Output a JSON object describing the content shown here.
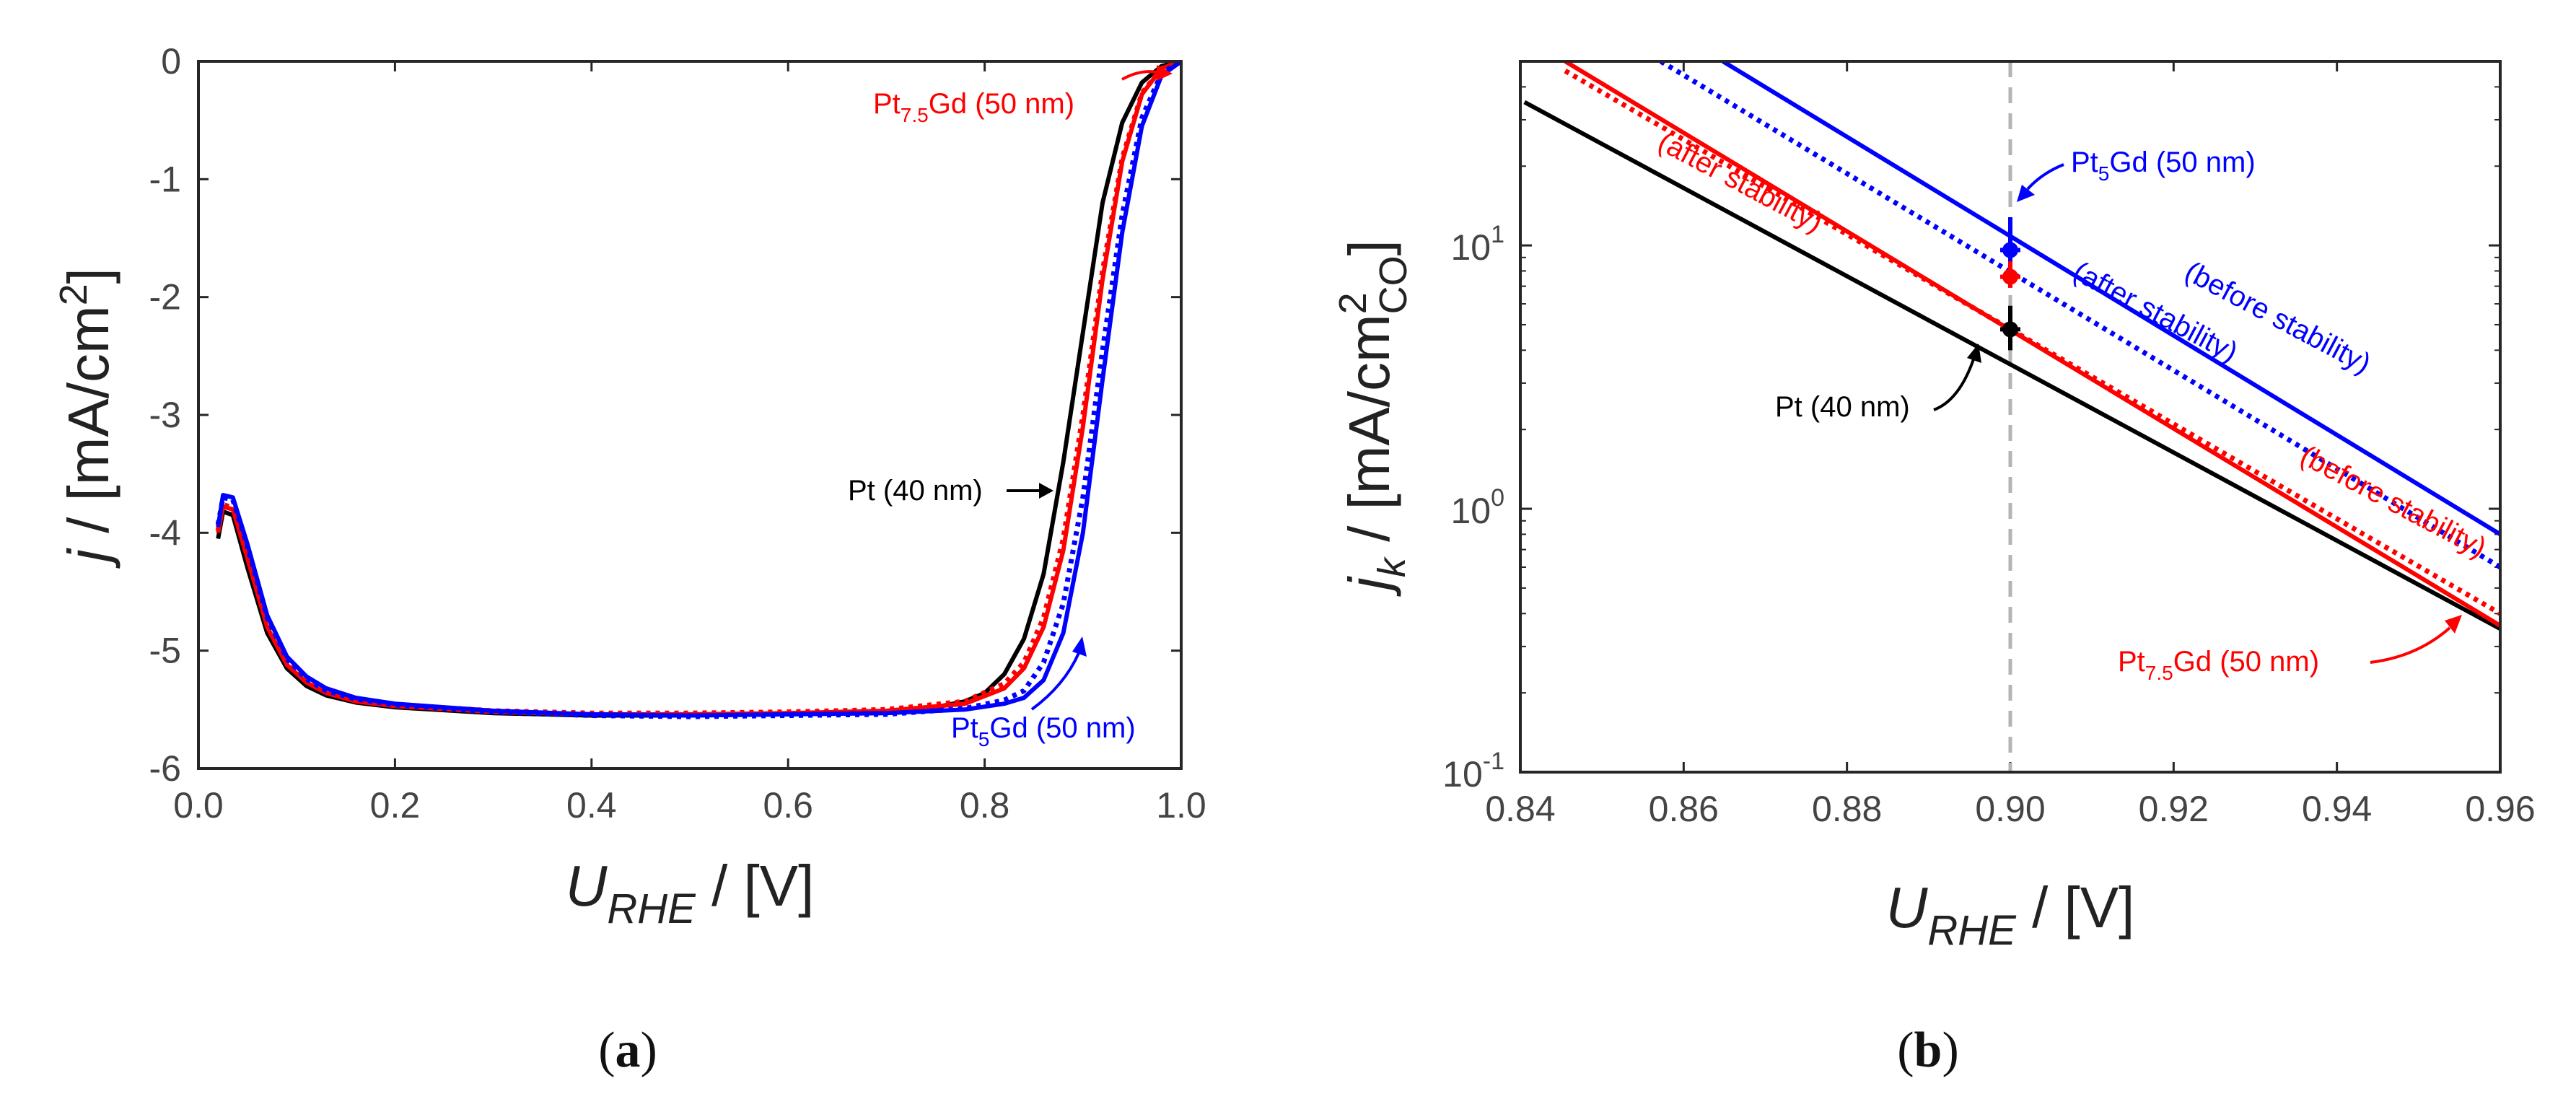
{
  "colors": {
    "pt": "#000000",
    "pt75gd": "#ff0000",
    "pt5gd": "#0000ff",
    "refline": "#b4b4b4"
  },
  "panels": {
    "a": {
      "label_open": "(",
      "label_letter": "a",
      "label_close": ")"
    },
    "b": {
      "label_open": "(",
      "label_letter": "b",
      "label_close": ")"
    }
  },
  "chart_data": [
    {
      "id": "a",
      "type": "line",
      "title": "",
      "xlabel": {
        "main": "U",
        "sub": "RHE",
        "unit": " / [V]"
      },
      "ylabel": {
        "main": "j",
        "rest": " / [mA/cm",
        "sup": "2",
        "close": "]"
      },
      "xlim": [
        0.0,
        1.0
      ],
      "ylim": [
        -6,
        0
      ],
      "xticks": [
        0.0,
        0.2,
        0.4,
        0.6,
        0.8,
        1.0
      ],
      "xtick_labels": [
        "0.0",
        "0.2",
        "0.4",
        "0.6",
        "0.8",
        "1.0"
      ],
      "yticks": [
        0,
        -1,
        -2,
        -3,
        -4,
        -5,
        -6
      ],
      "ytick_labels": [
        "0",
        "-1",
        "-2",
        "-3",
        "-4",
        "-5",
        "-6"
      ],
      "series": [
        {
          "name": "Pt (40 nm)",
          "color": "#000000",
          "style": "solid",
          "x": [
            0.02,
            0.025,
            0.035,
            0.05,
            0.07,
            0.09,
            0.11,
            0.13,
            0.16,
            0.2,
            0.3,
            0.4,
            0.5,
            0.6,
            0.7,
            0.75,
            0.78,
            0.8,
            0.82,
            0.84,
            0.86,
            0.88,
            0.9,
            0.92,
            0.94,
            0.96,
            0.98,
            1.0
          ],
          "y": [
            -4.05,
            -3.82,
            -3.85,
            -4.3,
            -4.85,
            -5.15,
            -5.3,
            -5.38,
            -5.44,
            -5.48,
            -5.53,
            -5.55,
            -5.55,
            -5.54,
            -5.52,
            -5.48,
            -5.43,
            -5.36,
            -5.2,
            -4.9,
            -4.35,
            -3.4,
            -2.3,
            -1.2,
            -0.52,
            -0.18,
            -0.04,
            0.0
          ]
        },
        {
          "name": "Pt(7.5)Gd (50 nm)",
          "color": "#ff0000",
          "style": "solid",
          "x": [
            0.02,
            0.025,
            0.035,
            0.05,
            0.07,
            0.09,
            0.11,
            0.13,
            0.16,
            0.2,
            0.3,
            0.4,
            0.5,
            0.6,
            0.7,
            0.78,
            0.82,
            0.84,
            0.86,
            0.88,
            0.9,
            0.92,
            0.94,
            0.96,
            0.98,
            1.0
          ],
          "y": [
            -4.0,
            -3.78,
            -3.8,
            -4.22,
            -4.8,
            -5.12,
            -5.27,
            -5.36,
            -5.43,
            -5.47,
            -5.52,
            -5.54,
            -5.54,
            -5.53,
            -5.51,
            -5.45,
            -5.32,
            -5.15,
            -4.8,
            -4.15,
            -3.1,
            -1.85,
            -0.85,
            -0.28,
            -0.06,
            0.0
          ]
        },
        {
          "name": "Pt(7.5)Gd (50 nm) after stability",
          "color": "#ff0000",
          "style": "dotted",
          "x": [
            0.02,
            0.025,
            0.035,
            0.05,
            0.07,
            0.09,
            0.11,
            0.13,
            0.16,
            0.2,
            0.3,
            0.4,
            0.5,
            0.6,
            0.7,
            0.78,
            0.82,
            0.84,
            0.86,
            0.88,
            0.9,
            0.92,
            0.94,
            0.96,
            0.98,
            1.0
          ],
          "y": [
            -3.98,
            -3.76,
            -3.79,
            -4.2,
            -4.78,
            -5.1,
            -5.26,
            -5.35,
            -5.42,
            -5.46,
            -5.51,
            -5.53,
            -5.53,
            -5.52,
            -5.5,
            -5.43,
            -5.28,
            -5.1,
            -4.72,
            -4.05,
            -3.0,
            -1.78,
            -0.82,
            -0.27,
            -0.06,
            0.0
          ]
        },
        {
          "name": "Pt(5)Gd (50 nm)",
          "color": "#0000ff",
          "style": "solid",
          "x": [
            0.02,
            0.025,
            0.035,
            0.05,
            0.07,
            0.09,
            0.11,
            0.13,
            0.16,
            0.2,
            0.3,
            0.4,
            0.5,
            0.6,
            0.7,
            0.78,
            0.82,
            0.84,
            0.86,
            0.88,
            0.9,
            0.92,
            0.94,
            0.96,
            0.98,
            1.0
          ],
          "y": [
            -3.95,
            -3.68,
            -3.7,
            -4.1,
            -4.7,
            -5.05,
            -5.22,
            -5.32,
            -5.4,
            -5.45,
            -5.51,
            -5.54,
            -5.55,
            -5.54,
            -5.53,
            -5.5,
            -5.45,
            -5.4,
            -5.25,
            -4.85,
            -4.0,
            -2.7,
            -1.45,
            -0.55,
            -0.12,
            0.0
          ]
        },
        {
          "name": "Pt(5)Gd (50 nm) after stability",
          "color": "#0000ff",
          "style": "dotted",
          "x": [
            0.02,
            0.025,
            0.035,
            0.05,
            0.07,
            0.09,
            0.11,
            0.13,
            0.16,
            0.2,
            0.3,
            0.4,
            0.5,
            0.6,
            0.7,
            0.78,
            0.82,
            0.84,
            0.86,
            0.88,
            0.9,
            0.92,
            0.94,
            0.96,
            0.98,
            1.0
          ],
          "y": [
            -3.93,
            -3.7,
            -3.72,
            -4.12,
            -4.72,
            -5.07,
            -5.24,
            -5.34,
            -5.41,
            -5.46,
            -5.52,
            -5.55,
            -5.56,
            -5.55,
            -5.54,
            -5.49,
            -5.42,
            -5.34,
            -5.1,
            -4.6,
            -3.7,
            -2.45,
            -1.3,
            -0.48,
            -0.1,
            0.0
          ]
        }
      ],
      "annotations": [
        {
          "id": "pt",
          "base": "Pt (40 nm)",
          "color": "#000000",
          "arrow": "right"
        },
        {
          "id": "pt75",
          "base": "Pt",
          "sub": "7.5",
          "rest": "Gd (50 nm)",
          "color": "#ff0000",
          "arrow": "right"
        },
        {
          "id": "pt5",
          "base": "Pt",
          "sub": "5",
          "rest": "Gd (50 nm)",
          "color": "#0000ff",
          "arrow": "up"
        }
      ]
    },
    {
      "id": "b",
      "type": "line",
      "title": "",
      "scale_y": "log",
      "xlabel": {
        "main": "U",
        "sub": "RHE",
        "unit": " / [V]"
      },
      "ylabel": {
        "main": "j",
        "sub_k": "k",
        "rest": " / [mA/cm",
        "sup": "2",
        "sub_co": "CO",
        "close": "]"
      },
      "xlim": [
        0.84,
        0.96
      ],
      "ylim": [
        0.1,
        50
      ],
      "xticks": [
        0.84,
        0.86,
        0.88,
        0.9,
        0.92,
        0.94,
        0.96
      ],
      "xtick_labels": [
        "0.84",
        "0.86",
        "0.88",
        "0.90",
        "0.92",
        "0.94",
        "0.96"
      ],
      "yticks": [
        0.1,
        1,
        10
      ],
      "ytick_labels": [
        {
          "base": "10",
          "exp": "-1"
        },
        {
          "base": "10",
          "exp": "0"
        },
        {
          "base": "10",
          "exp": "1"
        }
      ],
      "reference_x": 0.9,
      "series": [
        {
          "name": "Pt (40 nm)",
          "color": "#000000",
          "style": "solid",
          "x": [
            0.8405,
            0.96
          ],
          "y": [
            35,
            0.35
          ]
        },
        {
          "name": "Pt(7.5)Gd (50 nm) before stability",
          "color": "#ff0000",
          "style": "solid",
          "x": [
            0.8455,
            0.96
          ],
          "y": [
            50,
            0.36
          ]
        },
        {
          "name": "Pt(7.5)Gd (50 nm) after stability",
          "color": "#ff0000",
          "style": "dotted",
          "x": [
            0.8455,
            0.96
          ],
          "y": [
            46,
            0.4
          ]
        },
        {
          "name": "Pt(5)Gd (50 nm) before stability",
          "color": "#0000ff",
          "style": "solid",
          "x": [
            0.8648,
            0.96
          ],
          "y": [
            50,
            0.8
          ]
        },
        {
          "name": "Pt(5)Gd (50 nm) after stability",
          "color": "#0000ff",
          "style": "dotted",
          "x": [
            0.8572,
            0.96
          ],
          "y": [
            50,
            0.6
          ]
        }
      ],
      "points": [
        {
          "name": "Pt(5)Gd",
          "color": "#0000ff",
          "x": 0.9,
          "y": 9.6,
          "yerr": [
            8.6,
            12.8
          ]
        },
        {
          "name": "Pt(7.5)Gd",
          "color": "#ff0000",
          "x": 0.9,
          "y": 7.6,
          "yerr": [
            6.9,
            8.7
          ]
        },
        {
          "name": "Pt",
          "color": "#000000",
          "x": 0.9,
          "y": 4.8,
          "yerr": [
            4.0,
            5.9
          ]
        }
      ],
      "annotations": [
        {
          "id": "pt5",
          "base": "Pt",
          "sub": "5",
          "rest": "Gd (50 nm)",
          "color": "#0000ff"
        },
        {
          "id": "pt",
          "base": "Pt (40 nm)",
          "color": "#000000"
        },
        {
          "id": "pt75",
          "base": "Pt",
          "sub": "7.5",
          "rest": "Gd (50 nm)",
          "color": "#ff0000"
        },
        {
          "id": "blue-before",
          "text": "(before stability)",
          "color": "#0000ff"
        },
        {
          "id": "blue-after",
          "text": "(after stability)",
          "color": "#0000ff"
        },
        {
          "id": "red-after",
          "text": "(after stability)",
          "color": "#ff0000"
        },
        {
          "id": "red-before",
          "text": "(before stability)",
          "color": "#ff0000"
        }
      ]
    }
  ]
}
